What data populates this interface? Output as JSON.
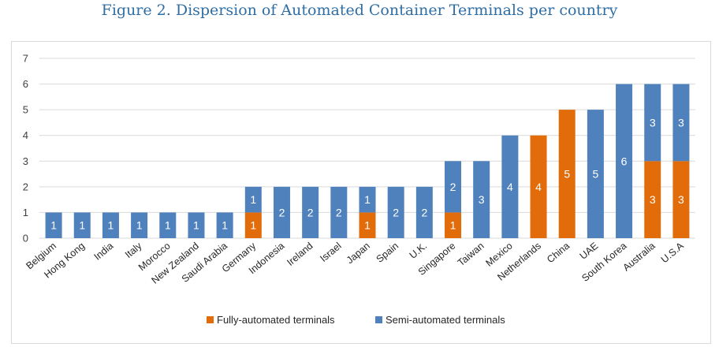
{
  "title": "Figure 2. Dispersion of Automated Container Terminals per country",
  "colors": {
    "fully": "#e36c0a",
    "semi": "#4f81bd",
    "grid": "#d9d9d9"
  },
  "chart_data": {
    "type": "bar",
    "stacked": true,
    "categories": [
      "Belgium",
      "Hong Kong",
      "India",
      "Italy",
      "Morocco",
      "New Zealand",
      "Saudi Arabia",
      "Germany",
      "Indonesia",
      "Ireland",
      "Israel",
      "Japan",
      "Spain",
      "U.K.",
      "Singapore",
      "Taiwan",
      "Mexico",
      "Netherlands",
      "China",
      "UAE",
      "South Korea",
      "Australia",
      "U.S.A"
    ],
    "series": [
      {
        "name": "Fully-automated terminals",
        "color": "#e36c0a",
        "values": [
          0,
          0,
          0,
          0,
          0,
          0,
          0,
          1,
          0,
          0,
          0,
          1,
          0,
          0,
          1,
          0,
          0,
          4,
          5,
          0,
          0,
          3,
          3
        ]
      },
      {
        "name": "Semi-automated terminals",
        "color": "#4f81bd",
        "values": [
          1,
          1,
          1,
          1,
          1,
          1,
          1,
          1,
          2,
          2,
          2,
          1,
          2,
          2,
          2,
          3,
          4,
          0,
          0,
          5,
          6,
          3,
          3
        ]
      }
    ],
    "ylim": [
      0,
      7
    ],
    "yticks": [
      0,
      1,
      2,
      3,
      4,
      5,
      6,
      7
    ],
    "grid": true,
    "legend": "bottom"
  }
}
